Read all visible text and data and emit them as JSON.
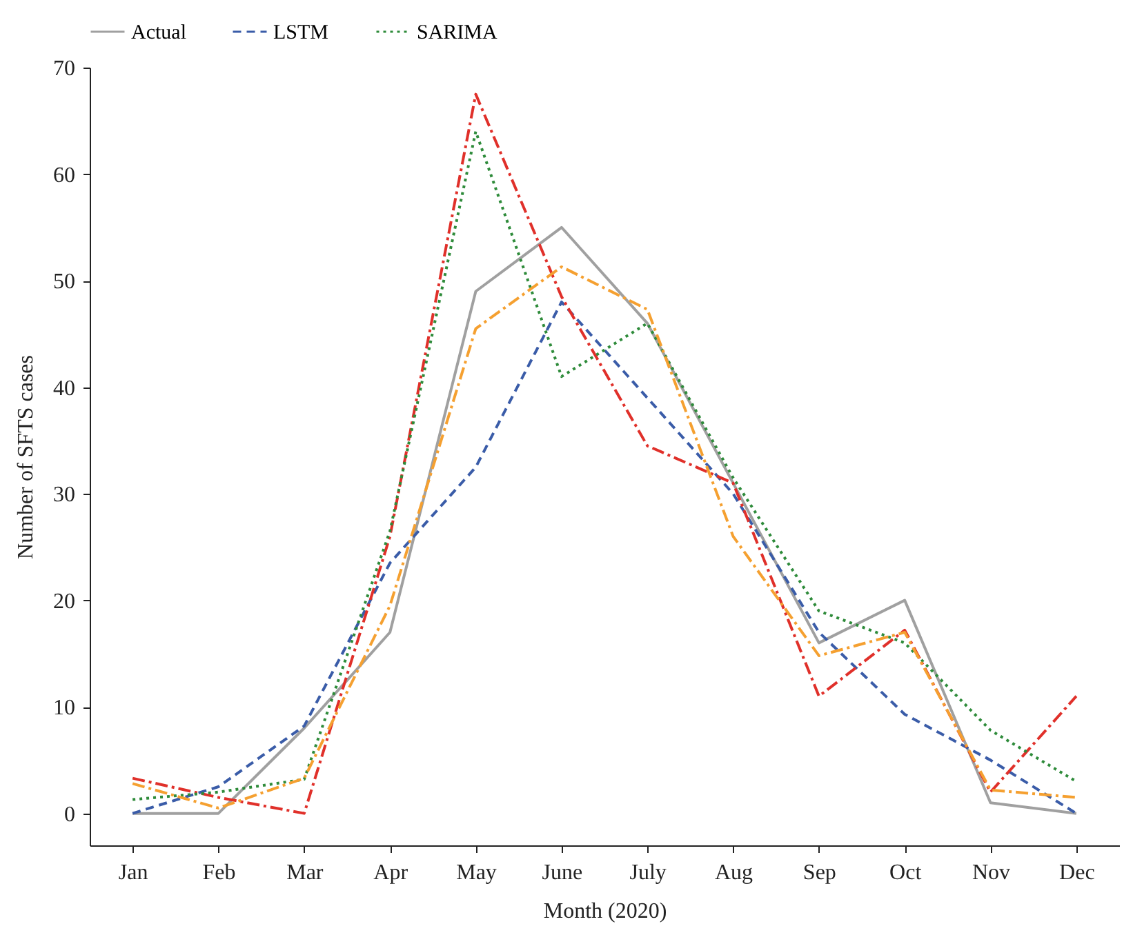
{
  "chart_data": {
    "type": "line",
    "xlabel": "Month (2020)",
    "ylabel": "Number of SFTS cases",
    "categories": [
      "Jan",
      "Feb",
      "Mar",
      "Apr",
      "May",
      "June",
      "July",
      "Aug",
      "Sep",
      "Oct",
      "Nov",
      "Dec"
    ],
    "ylim": [
      -3,
      70
    ],
    "yticks": [
      0,
      10,
      20,
      30,
      40,
      50,
      60,
      70
    ],
    "grid": false,
    "legend": "top",
    "marker": "none",
    "series": [
      {
        "name": "Actual",
        "color": "#a0a0a0",
        "line_style": "solid",
        "values": [
          0,
          0,
          8,
          17,
          49,
          55,
          46,
          31,
          16,
          20,
          1,
          0
        ]
      },
      {
        "name": "LSTM",
        "color": "#3a5ca8",
        "line_style": "dashed",
        "values": [
          0,
          2.5,
          8.2,
          23.5,
          32.5,
          48,
          39,
          30,
          17,
          9.3,
          5,
          0
        ]
      },
      {
        "color": "#e0302a",
        "line_style": "dashdot",
        "values": [
          3.3,
          1.5,
          0,
          26,
          67.5,
          48.5,
          34.5,
          31,
          11,
          17.2,
          2,
          11
        ]
      },
      {
        "name": "SARIMA",
        "color": "#2e8b3a",
        "line_style": "dotted",
        "values": [
          1.3,
          2,
          3.2,
          26.5,
          64,
          41,
          46,
          31.5,
          19,
          16,
          7.8,
          3
        ]
      },
      {
        "color": "#f5a030",
        "line_style": "dashdot",
        "values": [
          2.8,
          0.5,
          3.3,
          19.5,
          45.5,
          51.3,
          47.3,
          26,
          14.8,
          17,
          2.2,
          1.5
        ]
      }
    ]
  }
}
